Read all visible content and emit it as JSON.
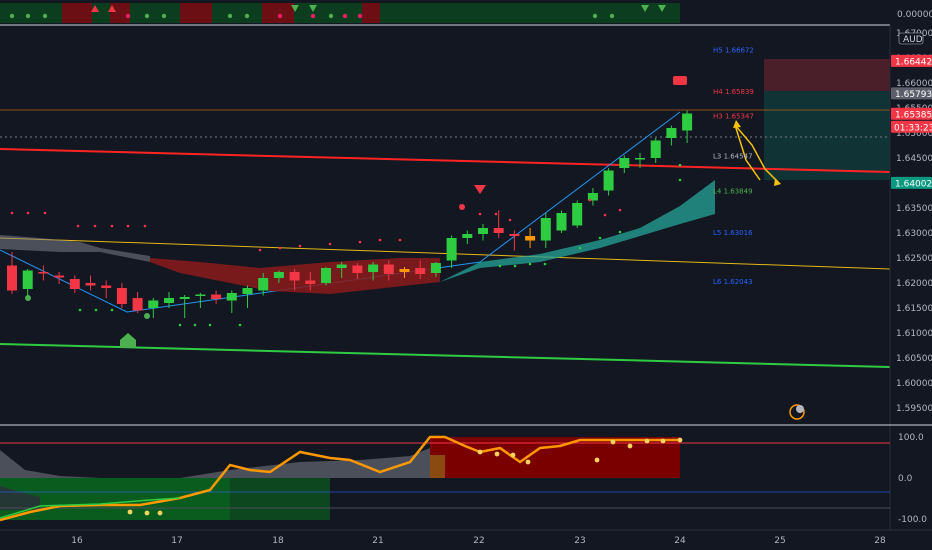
{
  "chart_data": {
    "type": "candlestick",
    "currency": "AUD",
    "x_ticks": [
      "16",
      "17",
      "18",
      "21",
      "22",
      "23",
      "24",
      "25",
      "28"
    ],
    "price_ticks": [
      "1.67000",
      "1.66500",
      "1.66000",
      "1.65500",
      "1.65000",
      "1.64500",
      "1.64000",
      "1.63500",
      "1.63000",
      "1.62500",
      "1.62000",
      "1.61500",
      "1.61000",
      "1.60500",
      "1.60000",
      "1.59500"
    ],
    "ylim": [
      1.5925,
      1.6735
    ],
    "top_strip_value": "0.00000",
    "oscillator_ticks": [
      "100.0",
      "0.0",
      "-100.0"
    ],
    "oscillator_ylim": [
      -110,
      110
    ],
    "price_badges": {
      "p1": {
        "label": "1.66442",
        "value": 1.66442,
        "color": "#f23645"
      },
      "p2": {
        "label": "1.65793",
        "value": 1.65793,
        "color": "#5d606b"
      },
      "p3": {
        "label": "1.65385",
        "value": 1.65385,
        "color": "#f23645"
      },
      "countdown": "01:33:23",
      "p4": {
        "label": "1.64002",
        "value": 1.64002,
        "color": "#089981"
      }
    },
    "pivot_levels": [
      {
        "label": "H5 1.66672",
        "value": 1.66672,
        "color": "#2962ff"
      },
      {
        "label": "H4 1.65839",
        "value": 1.65839,
        "color": "#f23645"
      },
      {
        "label": "H3 1.65347",
        "value": 1.65347,
        "color": "#f23645"
      },
      {
        "label": "L3 1.64547",
        "value": 1.64547,
        "color": "#b2b5be"
      },
      {
        "label": "L4 1.63849",
        "value": 1.63849,
        "color": "#4caf50"
      },
      {
        "label": "L5 1.63016",
        "value": 1.63016,
        "color": "#2962ff"
      },
      {
        "label": "L6 1.62043",
        "value": 1.62043,
        "color": "#2962ff"
      }
    ],
    "candles": [
      {
        "i": 0,
        "o": 1.6235,
        "h": 1.6262,
        "l": 1.6178,
        "c": 1.6185
      },
      {
        "i": 1,
        "o": 1.6188,
        "h": 1.6228,
        "l": 1.617,
        "c": 1.6225
      },
      {
        "i": 2,
        "o": 1.6222,
        "h": 1.6235,
        "l": 1.6205,
        "c": 1.622
      },
      {
        "i": 3,
        "o": 1.6215,
        "h": 1.6222,
        "l": 1.6198,
        "c": 1.6211
      },
      {
        "i": 4,
        "o": 1.6208,
        "h": 1.6215,
        "l": 1.618,
        "c": 1.6188
      },
      {
        "i": 5,
        "o": 1.62,
        "h": 1.6215,
        "l": 1.6185,
        "c": 1.6195
      },
      {
        "i": 6,
        "o": 1.6195,
        "h": 1.6205,
        "l": 1.617,
        "c": 1.619
      },
      {
        "i": 7,
        "o": 1.619,
        "h": 1.62,
        "l": 1.615,
        "c": 1.6158
      },
      {
        "i": 8,
        "o": 1.617,
        "h": 1.6182,
        "l": 1.614,
        "c": 1.6145
      },
      {
        "i": 9,
        "o": 1.615,
        "h": 1.617,
        "l": 1.613,
        "c": 1.6165
      },
      {
        "i": 10,
        "o": 1.616,
        "h": 1.6182,
        "l": 1.615,
        "c": 1.617
      },
      {
        "i": 11,
        "o": 1.6168,
        "h": 1.6176,
        "l": 1.613,
        "c": 1.6172
      },
      {
        "i": 12,
        "o": 1.6175,
        "h": 1.618,
        "l": 1.615,
        "c": 1.6177
      },
      {
        "i": 13,
        "o": 1.6177,
        "h": 1.6185,
        "l": 1.6158,
        "c": 1.6168
      },
      {
        "i": 14,
        "o": 1.6165,
        "h": 1.6185,
        "l": 1.614,
        "c": 1.618
      },
      {
        "i": 15,
        "o": 1.6178,
        "h": 1.6195,
        "l": 1.615,
        "c": 1.619
      },
      {
        "i": 16,
        "o": 1.6185,
        "h": 1.622,
        "l": 1.6175,
        "c": 1.621
      },
      {
        "i": 17,
        "o": 1.621,
        "h": 1.6225,
        "l": 1.62,
        "c": 1.6222
      },
      {
        "i": 18,
        "o": 1.6222,
        "h": 1.6228,
        "l": 1.6185,
        "c": 1.6205
      },
      {
        "i": 19,
        "o": 1.6205,
        "h": 1.6222,
        "l": 1.6185,
        "c": 1.6198
      },
      {
        "i": 20,
        "o": 1.62,
        "h": 1.6232,
        "l": 1.6195,
        "c": 1.623
      },
      {
        "i": 21,
        "o": 1.623,
        "h": 1.6242,
        "l": 1.621,
        "c": 1.6237
      },
      {
        "i": 22,
        "o": 1.6235,
        "h": 1.624,
        "l": 1.6208,
        "c": 1.622
      },
      {
        "i": 23,
        "o": 1.6222,
        "h": 1.6242,
        "l": 1.6205,
        "c": 1.6237
      },
      {
        "i": 24,
        "o": 1.6237,
        "h": 1.6245,
        "l": 1.6205,
        "c": 1.6218
      },
      {
        "i": 25,
        "o": 1.6222,
        "h": 1.6232,
        "l": 1.621,
        "c": 1.6228
      },
      {
        "i": 26,
        "o": 1.623,
        "h": 1.6245,
        "l": 1.6208,
        "c": 1.6218
      },
      {
        "i": 27,
        "o": 1.622,
        "h": 1.6242,
        "l": 1.6212,
        "c": 1.624
      },
      {
        "i": 28,
        "o": 1.6245,
        "h": 1.6295,
        "l": 1.623,
        "c": 1.629
      },
      {
        "i": 29,
        "o": 1.629,
        "h": 1.6305,
        "l": 1.6278,
        "c": 1.6298
      },
      {
        "i": 30,
        "o": 1.6298,
        "h": 1.6318,
        "l": 1.6285,
        "c": 1.631
      },
      {
        "i": 31,
        "o": 1.631,
        "h": 1.6345,
        "l": 1.629,
        "c": 1.63
      },
      {
        "i": 32,
        "o": 1.6298,
        "h": 1.6305,
        "l": 1.6265,
        "c": 1.6294
      },
      {
        "i": 33,
        "o": 1.6294,
        "h": 1.631,
        "l": 1.627,
        "c": 1.6285
      },
      {
        "i": 34,
        "o": 1.6285,
        "h": 1.634,
        "l": 1.627,
        "c": 1.633
      },
      {
        "i": 35,
        "o": 1.6305,
        "h": 1.6345,
        "l": 1.63,
        "c": 1.634
      },
      {
        "i": 36,
        "o": 1.6315,
        "h": 1.6365,
        "l": 1.631,
        "c": 1.636
      },
      {
        "i": 37,
        "o": 1.6365,
        "h": 1.639,
        "l": 1.6355,
        "c": 1.638
      },
      {
        "i": 38,
        "o": 1.6385,
        "h": 1.643,
        "l": 1.6375,
        "c": 1.6425
      },
      {
        "i": 39,
        "o": 1.643,
        "h": 1.6455,
        "l": 1.642,
        "c": 1.645
      },
      {
        "i": 40,
        "o": 1.6448,
        "h": 1.646,
        "l": 1.643,
        "c": 1.645
      },
      {
        "i": 41,
        "o": 1.645,
        "h": 1.649,
        "l": 1.644,
        "c": 1.6485
      },
      {
        "i": 42,
        "o": 1.649,
        "h": 1.6515,
        "l": 1.6475,
        "c": 1.651
      },
      {
        "i": 43,
        "o": 1.6505,
        "h": 1.6545,
        "l": 1.648,
        "c": 1.6539
      }
    ]
  }
}
